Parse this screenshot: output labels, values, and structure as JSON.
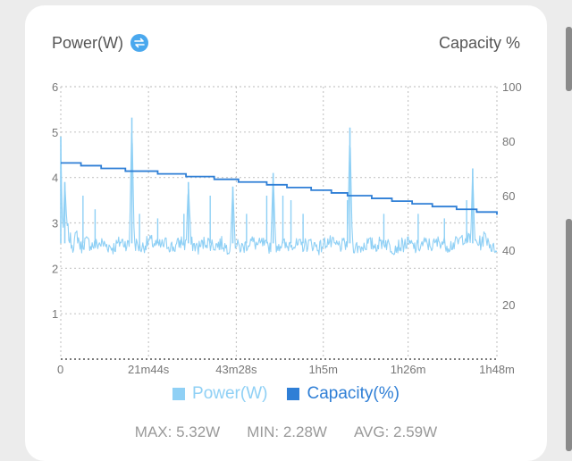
{
  "header": {
    "left_title": "Power(W)",
    "swap_icon": "swap-arrows-icon",
    "right_title": "Capacity %"
  },
  "legend": {
    "power_label": "Power(W)",
    "capacity_label": "Capacity(%)"
  },
  "stats": {
    "max": "MAX: 5.32W",
    "min": "MIN: 2.28W",
    "avg": "AVG: 2.59W"
  },
  "colors": {
    "power": "#8fd0f5",
    "capacity": "#2f7fd6",
    "grid": "#c8c8c8",
    "axis_text": "#777777",
    "swap_icon_bg": "#4aa8ee"
  },
  "chart_data": {
    "type": "line",
    "x_unit": "minutes",
    "x_ticks": [
      {
        "value": 0,
        "label": "0"
      },
      {
        "value": 21.73,
        "label": "21m44s"
      },
      {
        "value": 43.47,
        "label": "43m28s"
      },
      {
        "value": 65,
        "label": "1h5m"
      },
      {
        "value": 86,
        "label": "1h26m"
      },
      {
        "value": 108,
        "label": "1h48m"
      }
    ],
    "xlim": [
      0,
      108
    ],
    "y_left": {
      "ticks": [
        1,
        2,
        3,
        4,
        5,
        6
      ],
      "ylim": [
        0,
        6
      ]
    },
    "y_right": {
      "ticks": [
        20,
        40,
        60,
        80,
        100
      ],
      "ylim": [
        0,
        100
      ]
    },
    "grid": true,
    "legend_position": "bottom",
    "series": [
      {
        "name": "Power(W)",
        "axis": "left",
        "baseline_w": 2.52,
        "x": [
          0,
          0.3,
          0.6,
          1.0,
          1.5,
          2.0,
          3.0,
          4.0,
          5.0,
          6.0,
          8.0,
          10.0,
          13.0,
          15.0,
          17.0,
          17.6,
          18.2,
          20.0,
          22.0,
          24.0,
          25.0,
          26.0,
          28.0,
          30.0,
          31.0,
          31.6,
          32.2,
          34.0,
          36.0,
          38.0,
          40.0,
          41.0,
          42.0,
          42.6,
          43.2,
          45.0,
          47.0,
          49.0,
          50.0,
          51.0,
          52.0,
          52.6,
          53.2,
          55.0,
          56.0,
          57.0,
          58.0,
          60.0,
          62.0,
          64.0,
          66.0,
          68.0,
          70.0,
          71.0,
          71.6,
          72.2,
          74.0,
          76.0,
          78.0,
          80.0,
          82.0,
          84.0,
          86.0,
          88.0,
          90.0,
          92.0,
          94.0,
          96.0,
          98.0,
          100.0,
          101.5,
          102.0,
          102.5,
          104.0,
          105.0,
          106.0,
          107.0,
          108.0
        ],
        "values": [
          4.9,
          3.2,
          2.9,
          3.9,
          3.0,
          2.7,
          2.5,
          2.75,
          2.45,
          2.6,
          2.5,
          2.55,
          2.45,
          2.6,
          2.5,
          5.32,
          2.55,
          2.45,
          2.6,
          2.5,
          2.5,
          2.55,
          2.45,
          2.6,
          2.5,
          3.9,
          2.55,
          2.45,
          2.6,
          2.5,
          2.55,
          2.45,
          2.5,
          3.8,
          2.5,
          2.45,
          2.6,
          2.5,
          2.55,
          2.45,
          2.5,
          4.1,
          2.5,
          2.55,
          2.45,
          2.6,
          2.5,
          2.5,
          2.55,
          2.45,
          2.6,
          2.5,
          2.5,
          2.55,
          5.1,
          2.5,
          2.45,
          2.55,
          2.5,
          2.6,
          2.45,
          2.5,
          2.55,
          2.45,
          2.55,
          2.5,
          2.6,
          2.5,
          2.55,
          2.7,
          2.6,
          4.2,
          2.6,
          2.55,
          2.7,
          2.6,
          2.4,
          2.5
        ],
        "extra_spikes": [
          {
            "x": 5.5,
            "value": 3.6
          },
          {
            "x": 8.5,
            "value": 3.3
          },
          {
            "x": 19.5,
            "value": 3.2
          },
          {
            "x": 24.0,
            "value": 3.1
          },
          {
            "x": 30.5,
            "value": 3.2
          },
          {
            "x": 37.0,
            "value": 3.6
          },
          {
            "x": 46.0,
            "value": 3.2
          },
          {
            "x": 51.0,
            "value": 3.6
          },
          {
            "x": 55.0,
            "value": 3.6
          },
          {
            "x": 57.0,
            "value": 3.5
          },
          {
            "x": 60.0,
            "value": 3.2
          },
          {
            "x": 71.0,
            "value": 3.5
          },
          {
            "x": 80.0,
            "value": 3.2
          },
          {
            "x": 88.5,
            "value": 3.2
          },
          {
            "x": 95.0,
            "value": 3.1
          },
          {
            "x": 100.5,
            "value": 3.5
          }
        ]
      },
      {
        "name": "Capacity(%)",
        "axis": "right",
        "step": true,
        "x": [
          0,
          5,
          10,
          16,
          24,
          31,
          38,
          44,
          51,
          56,
          62,
          67,
          71,
          77,
          82,
          87,
          92,
          98,
          103,
          108
        ],
        "values": [
          72,
          71,
          70,
          69,
          68,
          67,
          66,
          65,
          64,
          63,
          62,
          61,
          60,
          59,
          58,
          57,
          56,
          55,
          54,
          53
        ]
      }
    ]
  }
}
